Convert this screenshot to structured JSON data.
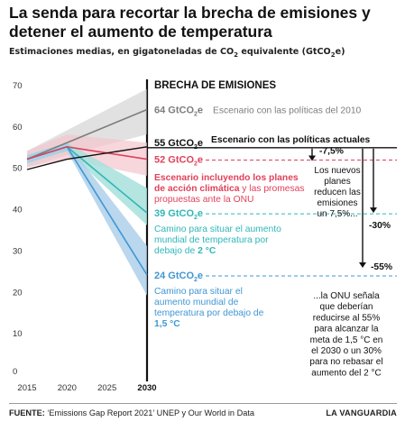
{
  "title": "La senda para recortar la brecha de emisiones y detener el aumento de temperatura",
  "subtitle": "Estimaciones medias, en gigatoneladas de CO₂ equivalente (GtCO₂e)",
  "source_label": "FUENTE: ",
  "source_text": "‘Emissions Gap Report 2021’ UNEP y Our World in Data",
  "brand": "LA VANGUARDIA",
  "gap_title": "BRECHA DE EMISIONES",
  "colors": {
    "gray": "#7d7d7d",
    "black": "#111111",
    "red": "#e0415a",
    "teal": "#2fb7b7",
    "blue": "#3f97d3",
    "gray_band": "#c8c8c8",
    "red_band": "#f3c6cd",
    "teal_band": "#a7e0dc",
    "blue_band": "#a9cde9"
  },
  "chart_data": {
    "type": "line",
    "x": [
      2015,
      2020,
      2025,
      2030
    ],
    "xlabel": "",
    "ylabel": "",
    "ylim": [
      0,
      70
    ],
    "yticks": [
      0,
      10,
      20,
      30,
      40,
      50,
      60,
      70
    ],
    "grid": false,
    "series": [
      {
        "key": "policies_2010",
        "value_label": "64 GtCO₂e",
        "label": "Escenario con las políticas del 2010",
        "x": [
          2015,
          2020,
          2025,
          2030
        ],
        "values": [
          52,
          56,
          60,
          64
        ],
        "low": [
          50,
          53,
          55.5,
          58
        ],
        "high": [
          54,
          59,
          64,
          69
        ],
        "color": "gray"
      },
      {
        "key": "current_policies",
        "value_label": "55 GtCO₂e",
        "label": "Escenario con las políticas actuales",
        "x": [
          2015,
          2020,
          2025,
          2030
        ],
        "values": [
          49.5,
          52,
          53.5,
          55
        ],
        "color": "black"
      },
      {
        "key": "climate_plans",
        "value_label": "52 GtCO₂e",
        "label_bold": "Escenario incluyendo los planes de acción climática",
        "label_rest": " y las promesas propuestas ante la ONU",
        "x": [
          2015,
          2020,
          2025,
          2030
        ],
        "values": [
          52,
          55,
          53.5,
          52
        ],
        "low": [
          50,
          52,
          50,
          48
        ],
        "high": [
          54,
          58,
          57,
          56
        ],
        "color": "red"
      },
      {
        "key": "path_2c",
        "value_label": "39 GtCO₂e",
        "label": "Camino para situar el aumento mundial de temperatura por debajo de ",
        "label_emph": "2 °C",
        "x": [
          2015,
          2020,
          2030
        ],
        "values": [
          52,
          55,
          39
        ],
        "low": [
          51,
          54,
          36
        ],
        "high": [
          53,
          56,
          45
        ],
        "color": "teal"
      },
      {
        "key": "path_1_5c",
        "value_label": "24 GtCO₂e",
        "label": "Camino para situar el aumento mundial de temperatura por debajo de ",
        "label_emph": "1,5 °C",
        "x": [
          2015,
          2020,
          2030
        ],
        "values": [
          52,
          55,
          24
        ],
        "low": [
          51,
          54,
          19
        ],
        "high": [
          53,
          56,
          31
        ],
        "color": "blue"
      }
    ],
    "annotations": [
      {
        "key": "gap_75",
        "label": "-7,5%",
        "note": "Los nuevos planes reducen las emisiones un 7,5%..."
      },
      {
        "key": "gap_30",
        "label": "-30%"
      },
      {
        "key": "gap_55",
        "label": "-55%",
        "note": "...la ONU señala que deberían reducirse al 55% para alcanzar la meta de 1,5 °C en el 2030 o un 30% para no rebasar el aumento del 2 °C"
      }
    ]
  }
}
